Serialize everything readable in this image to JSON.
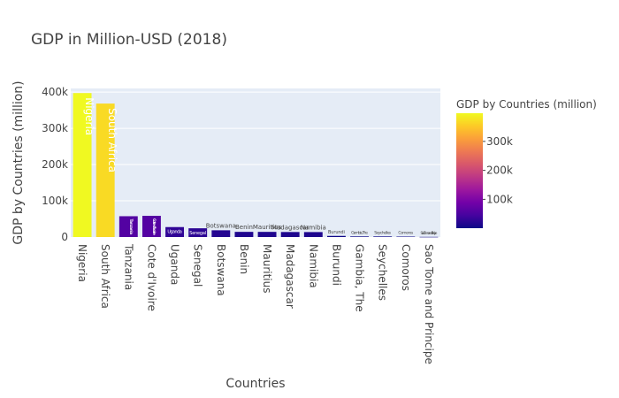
{
  "chart_data": {
    "type": "bar",
    "title": "GDP in Million-USD (2018)",
    "xlabel": "Countries",
    "ylabel": "GDP by Countries (million)",
    "ylim": [
      0,
      410000
    ],
    "yticks": [
      0,
      100000,
      200000,
      300000,
      400000
    ],
    "ytick_labels": [
      "0",
      "100k",
      "200k",
      "300k",
      "400k"
    ],
    "categories": [
      "Nigeria",
      "South Africa",
      "Tanzania",
      "Cote d'Ivoire",
      "Uganda",
      "Senegal",
      "Botswana",
      "Benin",
      "Mauritius",
      "Madagascar",
      "Namibia",
      "Burundi",
      "Gambia, The",
      "Seychelles",
      "Comoros",
      "Sao Tome and Principe"
    ],
    "values": [
      397270,
      368289,
      57437,
      58539,
      27477,
      24130,
      18616,
      14262,
      14220,
      13853,
      13681,
      3033,
      1624,
      1590,
      1186,
      422
    ],
    "colorscale": [
      "#0d0887",
      "#46039f",
      "#7201a8",
      "#9c179e",
      "#bd3786",
      "#d8576b",
      "#ed7953",
      "#fb9f3a",
      "#fdca26",
      "#f0f921"
    ],
    "colorbar": {
      "title": "GDP by Countries (million)",
      "ticks": [
        100000,
        200000,
        300000
      ],
      "tick_labels": [
        "100k",
        "200k",
        "300k"
      ]
    },
    "grid": true
  }
}
